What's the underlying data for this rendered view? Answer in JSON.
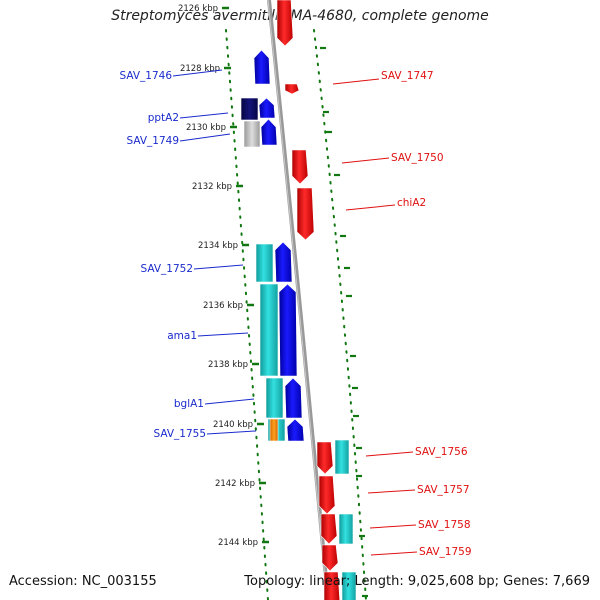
{
  "title": "Streptomyces avermitilis MA-4680, complete genome",
  "footer": {
    "accession": "Accession: NC_003155",
    "summary": "Topology: linear; Length: 9,025,608 bp; Genes: 7,669"
  },
  "colors": {
    "reverse_strand": "#ee1111",
    "forward_strand": "#1010ee",
    "feature_cyan": "#22cccc",
    "feature_navy": "#0a0a66",
    "feature_gray": "#bbbbbb",
    "feature_orange": "#ee8800",
    "tick_green": "#117711",
    "backbone": "#888888"
  },
  "ticks": [
    {
      "label": "2126 kbp"
    },
    {
      "label": "2128 kbp"
    },
    {
      "label": "2130 kbp"
    },
    {
      "label": "2132 kbp"
    },
    {
      "label": "2134 kbp"
    },
    {
      "label": "2136 kbp"
    },
    {
      "label": "2138 kbp"
    },
    {
      "label": "2140 kbp"
    },
    {
      "label": "2142 kbp"
    },
    {
      "label": "2144 kbp"
    }
  ],
  "left_genes": [
    {
      "label": "SAV_1746"
    },
    {
      "label": "pptA2"
    },
    {
      "label": "SAV_1749"
    },
    {
      "label": "SAV_1752"
    },
    {
      "label": "ama1"
    },
    {
      "label": "bglA1"
    },
    {
      "label": "SAV_1755"
    }
  ],
  "right_genes": [
    {
      "label": "SAV_1747"
    },
    {
      "label": "SAV_1750"
    },
    {
      "label": "chiA2"
    },
    {
      "label": "SAV_1756"
    },
    {
      "label": "SAV_1757"
    },
    {
      "label": "SAV_1758"
    },
    {
      "label": "SAV_1759"
    }
  ]
}
